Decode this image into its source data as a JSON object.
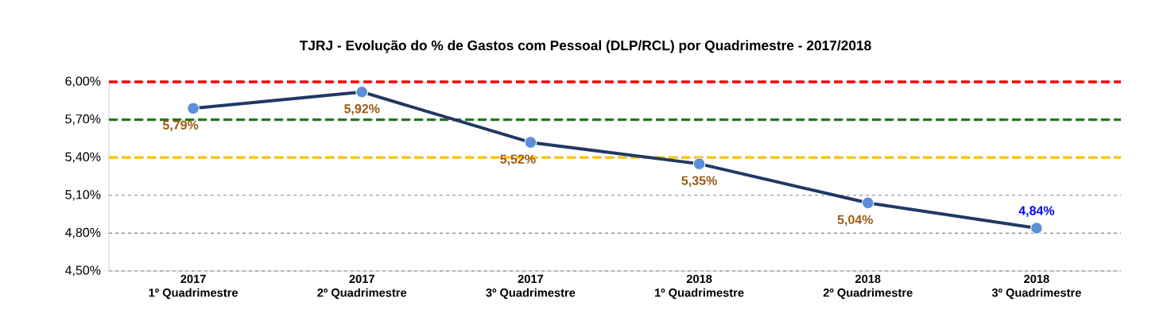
{
  "chart_data": {
    "type": "line",
    "title": "TJRJ - Evolução do % de Gastos com Pessoal (DLP/RCL) por Quadrimestre - 2017/2018",
    "categories": [
      "2017\n1º Quadrimestre",
      "2017\n2º Quadrimestre",
      "2017\n3º Quadrimestre",
      "2018\n1º Quadrimestre",
      "2018\n2º Quadrimestre",
      "2018\n3º Quadrimestre"
    ],
    "series": [
      {
        "color": "#203864",
        "values": [
          5.79,
          5.92,
          5.52,
          5.35,
          5.04,
          4.84
        ],
        "value_labels": [
          "5,79%",
          "5,92%",
          "5,52%",
          "5,35%",
          "5,04%",
          "4,84%"
        ]
      }
    ],
    "ylim": [
      4.5,
      6.0
    ],
    "yticks": [
      {
        "value": 4.5,
        "label": "4,50%"
      },
      {
        "value": 4.8,
        "label": "4,80%"
      },
      {
        "value": 5.1,
        "label": "5,10%"
      },
      {
        "value": 5.4,
        "label": "5,40%"
      },
      {
        "value": 5.7,
        "label": "5,70%"
      },
      {
        "value": 6.0,
        "label": "6,00%"
      }
    ],
    "ref_lines": [
      {
        "axis": "y",
        "value": 6.0,
        "color": "#ff0000",
        "line_style": "dashed"
      },
      {
        "axis": "y",
        "value": 5.7,
        "color": "#1e7a1e",
        "line_style": "dashed"
      },
      {
        "axis": "y",
        "value": 5.4,
        "color": "#ffc000",
        "line_style": "dashed"
      }
    ],
    "grid": "y",
    "marker": "circle",
    "line_style": "solid"
  }
}
